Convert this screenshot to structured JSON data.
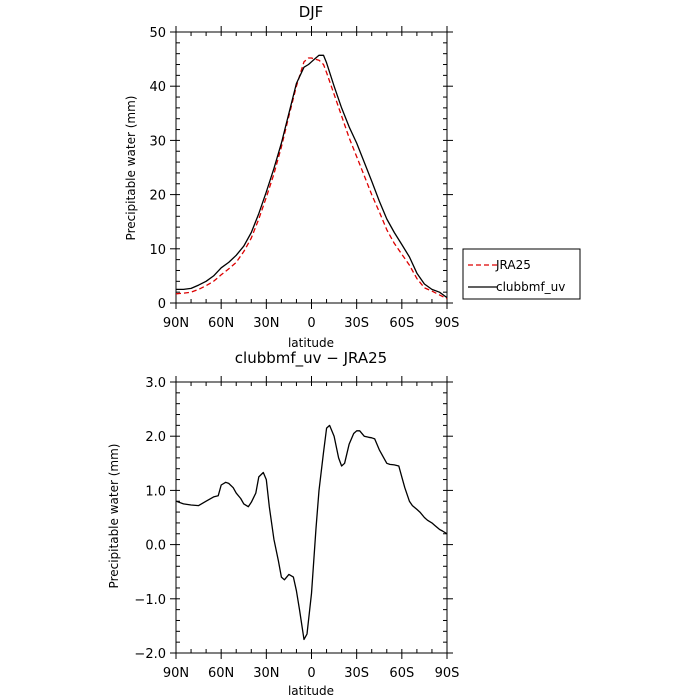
{
  "chart_data": [
    {
      "type": "line",
      "title": "DJF",
      "xlabel": "latitude",
      "ylabel": "Precipitable water (mm)",
      "xlim": [
        90,
        -90
      ],
      "ylim": [
        0,
        50
      ],
      "x_tick_values": [
        90,
        60,
        30,
        0,
        -30,
        -60,
        -90
      ],
      "x_tick_labels": [
        "90N",
        "60N",
        "30N",
        "0",
        "30S",
        "60S",
        "90S"
      ],
      "y_tick_values": [
        0,
        10,
        20,
        30,
        40,
        50
      ],
      "y_tick_labels": [
        "0",
        "10",
        "20",
        "30",
        "40",
        "50"
      ],
      "legend_position": "right-bottom-outside",
      "series": [
        {
          "name": "JRA25",
          "color": "#dd0000",
          "style": "dashed",
          "x": [
            90,
            85,
            80,
            75,
            70,
            65,
            60,
            55,
            50,
            45,
            40,
            35,
            30,
            25,
            20,
            15,
            10,
            5,
            2,
            0,
            -2,
            -5,
            -8,
            -10,
            -15,
            -20,
            -25,
            -30,
            -35,
            -40,
            -45,
            -50,
            -55,
            -60,
            -65,
            -70,
            -75,
            -80,
            -85,
            -90
          ],
          "values": [
            1.7,
            1.8,
            2.0,
            2.5,
            3.2,
            4.0,
            5.2,
            6.3,
            7.5,
            9.5,
            12.0,
            15.5,
            19.5,
            23.8,
            28.8,
            34.5,
            40.0,
            44.5,
            45.2,
            45.2,
            45.0,
            44.8,
            44.0,
            42.5,
            38.5,
            34.5,
            30.5,
            27.0,
            23.5,
            20.0,
            16.8,
            13.5,
            11.0,
            9.0,
            7.0,
            4.5,
            2.8,
            2.2,
            1.5,
            0.8
          ]
        },
        {
          "name": "clubbmf_uv",
          "color": "#000000",
          "style": "solid",
          "x": [
            90,
            85,
            80,
            75,
            70,
            65,
            60,
            55,
            50,
            45,
            40,
            35,
            30,
            25,
            20,
            15,
            10,
            5,
            2,
            0,
            -2,
            -5,
            -8,
            -10,
            -15,
            -20,
            -25,
            -30,
            -35,
            -40,
            -45,
            -50,
            -55,
            -60,
            -65,
            -70,
            -75,
            -80,
            -85,
            -90
          ],
          "values": [
            2.5,
            2.5,
            2.7,
            3.3,
            4.0,
            5.0,
            6.5,
            7.5,
            8.8,
            10.5,
            13.0,
            16.5,
            20.5,
            24.8,
            29.5,
            35.0,
            40.5,
            43.5,
            44.0,
            44.5,
            45.0,
            45.7,
            45.7,
            44.3,
            40.0,
            36.0,
            32.5,
            29.5,
            26.0,
            22.5,
            18.8,
            15.5,
            13.0,
            10.8,
            8.5,
            5.5,
            3.5,
            2.5,
            2.0,
            1.0
          ]
        }
      ]
    },
    {
      "type": "line",
      "title": "clubbmf_uv − JRA25",
      "xlabel": "latitude",
      "ylabel": "Precipitable water (mm)",
      "xlim": [
        90,
        -90
      ],
      "ylim": [
        -2.0,
        3.0
      ],
      "x_tick_values": [
        90,
        60,
        30,
        0,
        -30,
        -60,
        -90
      ],
      "x_tick_labels": [
        "90N",
        "60N",
        "30N",
        "0",
        "30S",
        "60S",
        "90S"
      ],
      "y_tick_values": [
        -2,
        -1,
        0,
        1,
        2,
        3
      ],
      "y_tick_labels": [
        "−2.0",
        "−1.0",
        "0.0",
        "1.0",
        "2.0",
        "3.0"
      ],
      "series": [
        {
          "color": "#000000",
          "style": "solid",
          "x": [
            90,
            85,
            80,
            75,
            70,
            65,
            62,
            60,
            57,
            55,
            52,
            50,
            47,
            45,
            42,
            40,
            37,
            35,
            32,
            30,
            28,
            25,
            22,
            20,
            18,
            15,
            12,
            10,
            8,
            5,
            3,
            0,
            -3,
            -5,
            -8,
            -10,
            -12,
            -15,
            -18,
            -20,
            -22,
            -25,
            -28,
            -30,
            -32,
            -35,
            -38,
            -40,
            -42,
            -45,
            -48,
            -50,
            -52,
            -55,
            -58,
            -60,
            -62,
            -65,
            -67,
            -70,
            -72,
            -75,
            -77,
            -80,
            -82,
            -85,
            -87,
            -90
          ],
          "values": [
            0.8,
            0.75,
            0.73,
            0.72,
            0.8,
            0.88,
            0.9,
            1.1,
            1.15,
            1.13,
            1.05,
            0.95,
            0.85,
            0.75,
            0.7,
            0.78,
            0.95,
            1.25,
            1.33,
            1.2,
            0.7,
            0.1,
            -0.3,
            -0.6,
            -0.65,
            -0.55,
            -0.6,
            -0.85,
            -1.2,
            -1.75,
            -1.65,
            -0.9,
            0.3,
            1.0,
            1.7,
            2.15,
            2.2,
            2.0,
            1.6,
            1.45,
            1.5,
            1.85,
            2.05,
            2.1,
            2.1,
            2.0,
            1.98,
            1.97,
            1.95,
            1.75,
            1.6,
            1.5,
            1.48,
            1.47,
            1.45,
            1.25,
            1.05,
            0.8,
            0.72,
            0.65,
            0.6,
            0.5,
            0.45,
            0.4,
            0.35,
            0.28,
            0.25,
            0.2
          ]
        }
      ]
    }
  ]
}
